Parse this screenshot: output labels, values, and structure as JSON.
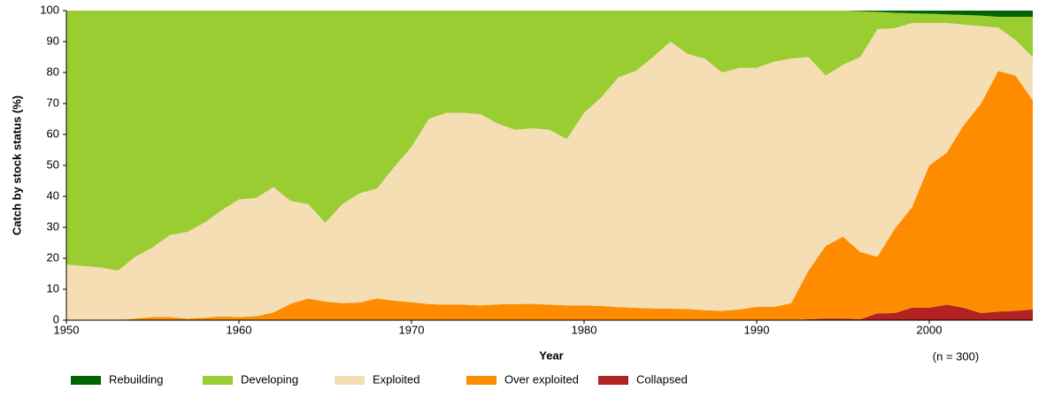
{
  "chart_data": {
    "type": "stacked-area",
    "x_label": "Year",
    "y_label": "Catch by stock status (%)",
    "annotation": "(n = 300)",
    "x": [
      1950,
      1951,
      1952,
      1953,
      1954,
      1955,
      1956,
      1957,
      1958,
      1959,
      1960,
      1961,
      1962,
      1963,
      1964,
      1965,
      1966,
      1967,
      1968,
      1969,
      1970,
      1971,
      1972,
      1973,
      1974,
      1975,
      1976,
      1977,
      1978,
      1979,
      1980,
      1981,
      1982,
      1983,
      1984,
      1985,
      1986,
      1987,
      1988,
      1989,
      1990,
      1991,
      1992,
      1993,
      1994,
      1995,
      1996,
      1997,
      1998,
      1999,
      2000,
      2001,
      2002,
      2003,
      2004,
      2005,
      2006
    ],
    "xlim": [
      1950,
      2006
    ],
    "xticks": [
      1950,
      1960,
      1970,
      1980,
      1990,
      2000
    ],
    "ylim": [
      0,
      100
    ],
    "yticks": [
      0,
      10,
      20,
      30,
      40,
      50,
      60,
      70,
      80,
      90,
      100
    ],
    "series": [
      {
        "name": "Rebuilding",
        "color": "#006400",
        "values": [
          0,
          0,
          0,
          0,
          0,
          0,
          0,
          0,
          0,
          0,
          0,
          0,
          0,
          0,
          0,
          0,
          0,
          0,
          0,
          0,
          0,
          0,
          0,
          0,
          0,
          0,
          0,
          0,
          0,
          0,
          0,
          0,
          0,
          0,
          0,
          0,
          0,
          0,
          0,
          0,
          0,
          0,
          0,
          0,
          0,
          0,
          0.2,
          0.4,
          0.7,
          0.9,
          1,
          1.2,
          1.4,
          1.6,
          2,
          2,
          2
        ]
      },
      {
        "name": "Developing",
        "color": "#9acd32",
        "values": [
          82,
          82.5,
          83,
          84,
          79.5,
          76.5,
          72.5,
          71.5,
          68.5,
          64.5,
          61,
          60.5,
          57,
          61.5,
          62.5,
          68.5,
          62.5,
          59,
          57.5,
          50.5,
          44,
          35,
          33,
          33,
          33.5,
          36.5,
          38.5,
          38,
          38.5,
          41.5,
          33,
          28,
          21.5,
          19.5,
          15,
          10,
          14,
          15.5,
          20,
          18.5,
          18.5,
          16.5,
          15.5,
          15,
          21,
          17.5,
          14.8,
          5.6,
          5,
          3.1,
          3,
          2.8,
          3.1,
          3.4,
          3.5,
          7.5,
          13
        ]
      },
      {
        "name": "Exploited",
        "color": "#f5deb3",
        "values": [
          18,
          17.5,
          17,
          16,
          20,
          22.5,
          26.5,
          28,
          30.7,
          34.3,
          38,
          38.2,
          40.5,
          33.2,
          30.5,
          25.5,
          32,
          35.3,
          35.5,
          43.2,
          50.2,
          59.8,
          62,
          62,
          61.7,
          58.4,
          56.3,
          56.7,
          56.5,
          53.7,
          62.2,
          67.4,
          74.3,
          76.5,
          81.2,
          86.3,
          82.4,
          81.3,
          77,
          78,
          77.2,
          79.2,
          79,
          69,
          55,
          55.5,
          63,
          73.5,
          64.8,
          59.5,
          46,
          42,
          32.5,
          25,
          14,
          11.5,
          14
        ]
      },
      {
        "name": "Over exploited",
        "color": "#ff8c00",
        "values": [
          0,
          0,
          0,
          0,
          0.5,
          1,
          1,
          0.5,
          0.8,
          1.2,
          1,
          1.3,
          2.5,
          5.3,
          7,
          6,
          5.5,
          5.7,
          7,
          6.3,
          5.8,
          5.2,
          5,
          5,
          4.8,
          5.1,
          5.2,
          5.3,
          5,
          4.8,
          4.8,
          4.6,
          4.2,
          4,
          3.8,
          3.7,
          3.6,
          3.2,
          3,
          3.5,
          4.3,
          4.3,
          5.5,
          15.7,
          23.5,
          26.5,
          21.7,
          18.3,
          27.2,
          32.5,
          46,
          49,
          59,
          67.7,
          77.7,
          76,
          67.5
        ]
      },
      {
        "name": "Collapsed",
        "color": "#b22222",
        "values": [
          0,
          0,
          0,
          0,
          0,
          0,
          0,
          0,
          0,
          0,
          0,
          0,
          0,
          0,
          0,
          0,
          0,
          0,
          0,
          0,
          0,
          0,
          0,
          0,
          0,
          0,
          0,
          0,
          0,
          0,
          0,
          0,
          0,
          0,
          0,
          0,
          0,
          0,
          0,
          0,
          0,
          0,
          0,
          0.3,
          0.5,
          0.5,
          0.3,
          2.2,
          2.3,
          4,
          4,
          5,
          4,
          2.3,
          2.8,
          3,
          3.5
        ]
      }
    ]
  }
}
